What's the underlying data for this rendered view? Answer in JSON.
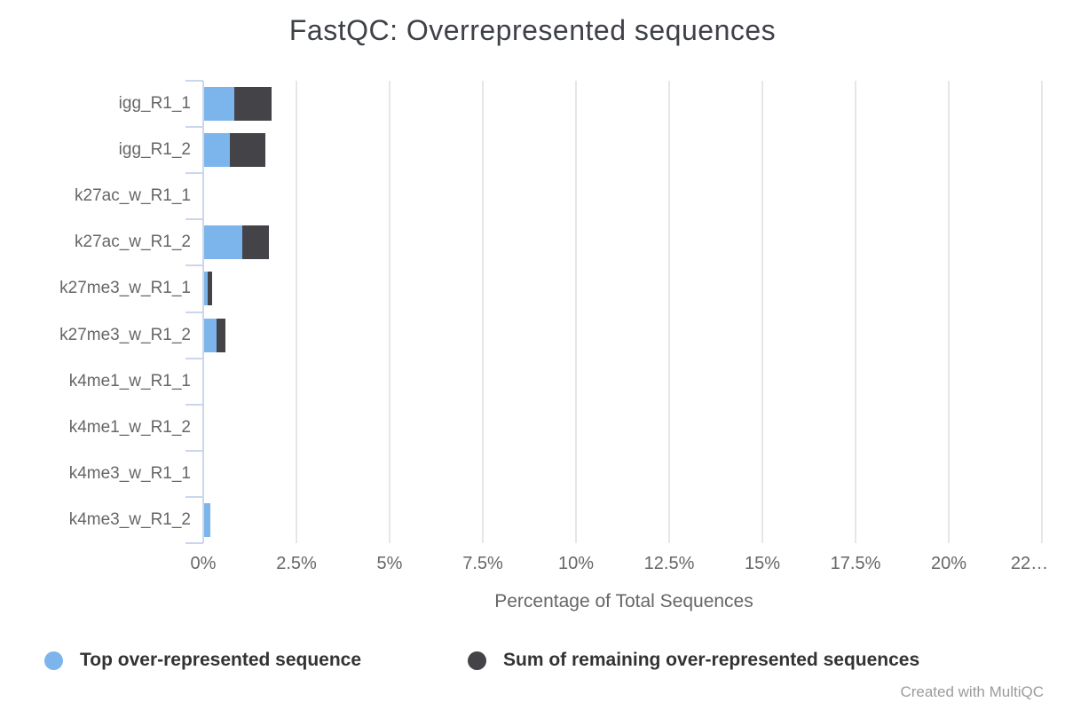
{
  "footer": "Created with MultiQC",
  "chart_data": {
    "type": "bar",
    "orientation": "horizontal",
    "stacked": true,
    "title": "FastQC: Overrepresented sequences",
    "xlabel": "Percentage of Total Sequences",
    "xlim": [
      0,
      22.5
    ],
    "grid": true,
    "legend_position": "bottom",
    "grid_color": "#e6e6e6",
    "axis_color": "#ccd6eb",
    "categories": [
      "igg_R1_1",
      "igg_R1_2",
      "k27ac_w_R1_1",
      "k27ac_w_R1_2",
      "k27me3_w_R1_1",
      "k27me3_w_R1_2",
      "k4me1_w_R1_1",
      "k4me1_w_R1_2",
      "k4me3_w_R1_1",
      "k4me3_w_R1_2"
    ],
    "series": [
      {
        "name": "Top over-represented sequence",
        "color": "#7cb5ec",
        "values": [
          0.82,
          0.68,
          0,
          1.02,
          0.1,
          0.33,
          0,
          0,
          0,
          0.16
        ]
      },
      {
        "name": "Sum of remaining over-represented sequences",
        "color": "#434348",
        "values": [
          0.98,
          0.97,
          0,
          0.72,
          0.12,
          0.25,
          0,
          0,
          0,
          0
        ]
      }
    ],
    "xticks": [
      {
        "value": 0,
        "label": "0%"
      },
      {
        "value": 2.5,
        "label": "2.5%"
      },
      {
        "value": 5,
        "label": "5%"
      },
      {
        "value": 7.5,
        "label": "7.5%"
      },
      {
        "value": 10,
        "label": "10%"
      },
      {
        "value": 12.5,
        "label": "12.5%"
      },
      {
        "value": 15,
        "label": "15%"
      },
      {
        "value": 17.5,
        "label": "17.5%"
      },
      {
        "value": 20,
        "label": "20%"
      },
      {
        "value": 22.5,
        "label": "22…"
      }
    ]
  }
}
